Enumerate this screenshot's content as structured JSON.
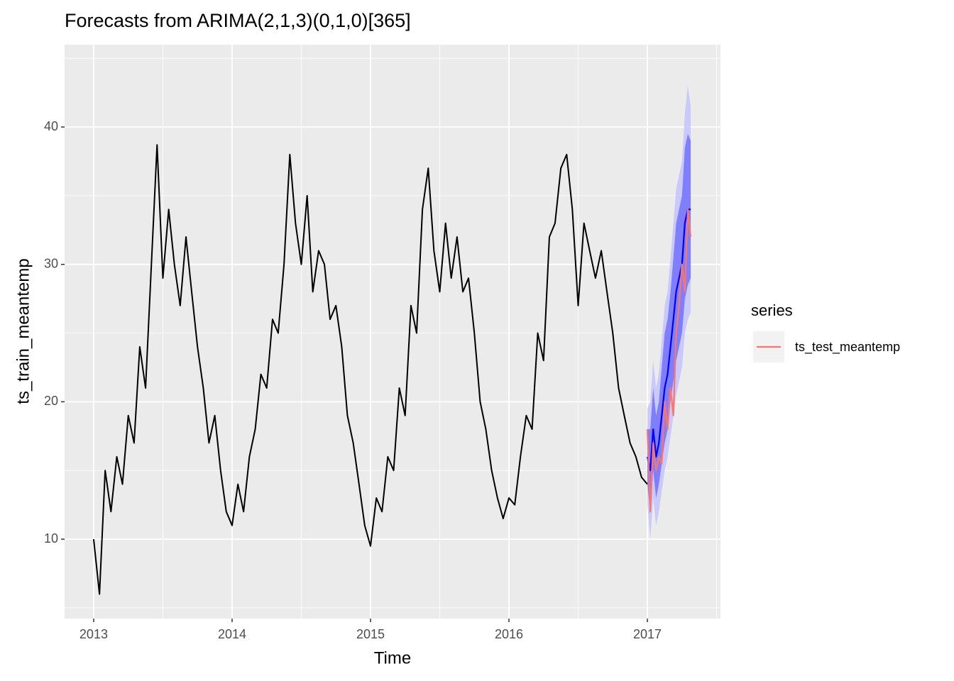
{
  "chart_data": {
    "type": "line",
    "title": "Forecasts from ARIMA(2,1,3)(0,1,0)[365]",
    "x_label": "Time",
    "y_label": "ts_train_meantemp",
    "xlim": [
      2012.79,
      2017.528
    ],
    "ylim": [
      4.22,
      45.99
    ],
    "xticks": [
      2013,
      2014,
      2015,
      2016,
      2017
    ],
    "yticks": [
      10,
      20,
      30,
      40
    ],
    "x_minor_grid": [
      2013.5,
      2014.5,
      2015.5,
      2016.5,
      2017.5
    ],
    "y_minor_grid": [
      5,
      15,
      25,
      35,
      45
    ],
    "grid": true,
    "legend_title": "series",
    "legend_position": "right",
    "train": {
      "color": "#000000",
      "x": [
        2013.0,
        2013.042,
        2013.083,
        2013.125,
        2013.167,
        2013.208,
        2013.25,
        2013.292,
        2013.333,
        2013.375,
        2013.417,
        2013.458,
        2013.5,
        2013.542,
        2013.583,
        2013.625,
        2013.667,
        2013.708,
        2013.75,
        2013.792,
        2013.833,
        2013.875,
        2013.917,
        2013.958,
        2014.0,
        2014.042,
        2014.083,
        2014.125,
        2014.167,
        2014.208,
        2014.25,
        2014.292,
        2014.333,
        2014.375,
        2014.417,
        2014.458,
        2014.5,
        2014.542,
        2014.583,
        2014.625,
        2014.667,
        2014.708,
        2014.75,
        2014.792,
        2014.833,
        2014.875,
        2014.917,
        2014.958,
        2015.0,
        2015.042,
        2015.083,
        2015.125,
        2015.167,
        2015.208,
        2015.25,
        2015.292,
        2015.333,
        2015.375,
        2015.417,
        2015.458,
        2015.5,
        2015.542,
        2015.583,
        2015.625,
        2015.667,
        2015.708,
        2015.75,
        2015.792,
        2015.833,
        2015.875,
        2015.917,
        2015.958,
        2016.0,
        2016.042,
        2016.083,
        2016.125,
        2016.167,
        2016.208,
        2016.25,
        2016.292,
        2016.333,
        2016.375,
        2016.417,
        2016.458,
        2016.5,
        2016.542,
        2016.583,
        2016.625,
        2016.667,
        2016.708,
        2016.75,
        2016.792,
        2016.833,
        2016.875,
        2016.917,
        2016.958,
        2017.0
      ],
      "values": [
        10,
        6,
        15,
        12,
        16,
        14,
        19,
        17,
        24,
        21,
        30,
        38.7,
        29,
        34,
        30,
        27,
        32,
        28,
        24,
        21,
        17,
        19,
        15,
        12,
        11,
        14,
        12,
        16,
        18,
        22,
        21,
        26,
        25,
        30,
        38,
        33,
        30,
        35,
        28,
        31,
        30,
        26,
        27,
        24,
        19,
        17,
        14,
        11,
        9.5,
        13,
        12,
        16,
        15,
        21,
        19,
        27,
        25,
        34,
        37,
        31,
        28,
        33,
        29,
        32,
        28,
        29,
        25,
        20,
        18,
        15,
        13,
        11.5,
        13,
        12.5,
        16,
        19,
        18,
        25,
        23,
        32,
        33,
        37,
        38,
        34,
        27,
        33,
        31,
        29,
        31,
        28,
        25,
        21,
        19,
        17,
        16,
        14.5,
        14
      ]
    },
    "forecast": {
      "mean_color": "#0000ff",
      "band80_color": "#6060ff",
      "band95_color": "#c0c0ff",
      "x": [
        2017.0,
        2017.021,
        2017.042,
        2017.063,
        2017.083,
        2017.104,
        2017.125,
        2017.146,
        2017.167,
        2017.188,
        2017.208,
        2017.229,
        2017.25,
        2017.271,
        2017.292,
        2017.313
      ],
      "mean": [
        16,
        15,
        18,
        16,
        17,
        19,
        21,
        22,
        24,
        26,
        28,
        29,
        30,
        33,
        34,
        34
      ],
      "lo80": [
        14,
        12,
        15,
        13,
        14,
        15.5,
        17,
        18,
        20,
        21.5,
        23,
        24,
        25,
        27.5,
        28.5,
        29
      ],
      "hi80": [
        18,
        18,
        21,
        19,
        20,
        22.5,
        25,
        26,
        28,
        30.5,
        33,
        34,
        35,
        38.5,
        39.5,
        39
      ],
      "lo95": [
        12.5,
        10,
        13,
        11,
        12,
        13.5,
        15,
        16,
        17.5,
        19,
        20.5,
        21.5,
        22.5,
        25,
        26,
        26.5
      ],
      "hi95": [
        19.5,
        20,
        23,
        21,
        22,
        24.5,
        27,
        28,
        30.5,
        33,
        35.5,
        36.5,
        37.5,
        41,
        43,
        41.5
      ]
    },
    "series": [
      {
        "name": "ts_test_meantemp",
        "color": "#F8766D",
        "x": [
          2017.0,
          2017.021,
          2017.042,
          2017.063,
          2017.083,
          2017.104,
          2017.125,
          2017.146,
          2017.167,
          2017.188,
          2017.208,
          2017.229,
          2017.25,
          2017.271,
          2017.292,
          2017.313
        ],
        "values": [
          18,
          12,
          17,
          15,
          16,
          15.5,
          20,
          18,
          21,
          19,
          25,
          27,
          30,
          28,
          34,
          32
        ]
      }
    ]
  }
}
